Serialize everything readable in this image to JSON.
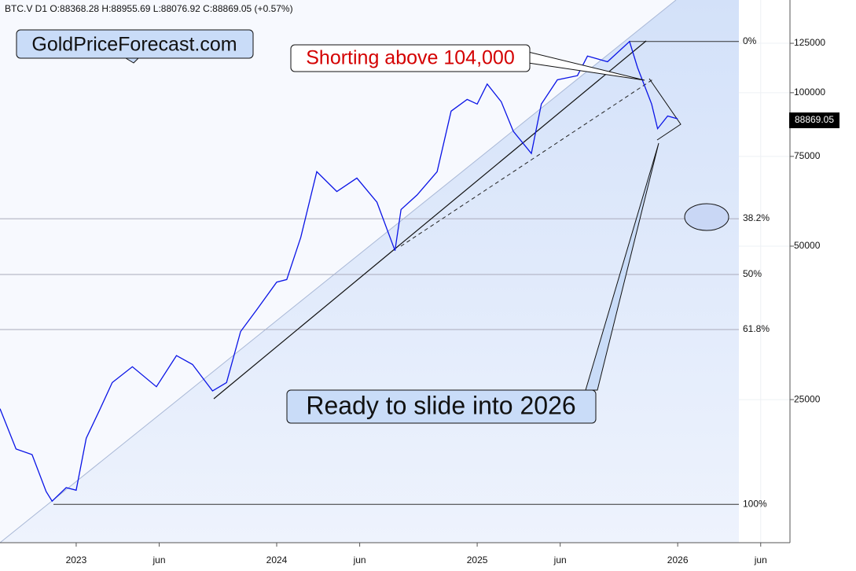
{
  "chart_data": {
    "type": "line",
    "header": "BTC.V  D1  O:88368.28  H:88955.69  L:88076.92  C:88869.05  (+0.57%)",
    "annotations": [
      "GoldPriceForecast.com",
      "Shorting above 104,000",
      "Ready to slide into 2026"
    ],
    "color": "#0a14e6",
    "log_scale": true,
    "x": [
      2022.62,
      2022.7,
      2022.78,
      2022.85,
      2022.88,
      2022.95,
      2023.0,
      2023.05,
      2023.12,
      2023.18,
      2023.28,
      2023.4,
      2023.5,
      2023.58,
      2023.68,
      2023.75,
      2023.82,
      2023.9,
      2024.0,
      2024.05,
      2024.12,
      2024.2,
      2024.3,
      2024.4,
      2024.5,
      2024.59,
      2024.62,
      2024.7,
      2024.8,
      2024.87,
      2024.95,
      2025.0,
      2025.05,
      2025.12,
      2025.18,
      2025.27,
      2025.32,
      2025.4,
      2025.5,
      2025.55,
      2025.65,
      2025.76,
      2025.8,
      2025.87,
      2025.9,
      2025.95,
      2026.0
    ],
    "values": [
      24000,
      20000,
      19500,
      16500,
      15800,
      16800,
      16600,
      21000,
      24000,
      27000,
      29000,
      26500,
      30500,
      29300,
      26000,
      27000,
      34000,
      37500,
      42500,
      43000,
      52000,
      70000,
      64000,
      68000,
      61000,
      49000,
      59000,
      63000,
      70000,
      92000,
      97000,
      95000,
      104000,
      96000,
      84000,
      76000,
      95000,
      106000,
      108000,
      118000,
      115000,
      126000,
      112000,
      95000,
      85000,
      90000,
      88869.05
    ],
    "last_value_label": "88869.05",
    "fib_levels": [
      {
        "label": "0%",
        "value": 126000
      },
      {
        "label": "38.2%",
        "value": 56600
      },
      {
        "label": "50%",
        "value": 44000
      },
      {
        "label": "61.8%",
        "value": 34300
      },
      {
        "label": "100%",
        "value": 15580
      }
    ],
    "xlim": [
      2022.62,
      2026.56
    ],
    "ylim": [
      13100,
      152000
    ],
    "xticks": [
      {
        "value": 2023,
        "label": "2023"
      },
      {
        "value": 2023.414,
        "label": "jun"
      },
      {
        "value": 2024,
        "label": "2024"
      },
      {
        "value": 2024.414,
        "label": "jun"
      },
      {
        "value": 2025,
        "label": "2025"
      },
      {
        "value": 2025.414,
        "label": "jun"
      },
      {
        "value": 2026,
        "label": "2026"
      },
      {
        "value": 2026.414,
        "label": "jun"
      }
    ],
    "yticks": [
      25000,
      50000,
      75000,
      100000,
      125000
    ],
    "grid": true
  }
}
